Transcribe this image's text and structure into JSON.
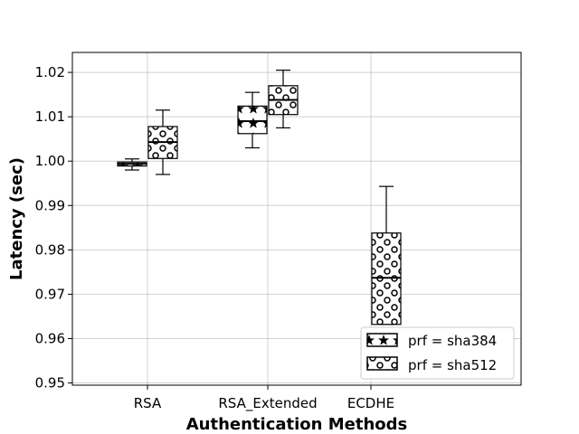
{
  "chart_data": {
    "type": "box",
    "title": "",
    "xlabel": "Authentication Methods",
    "ylabel": "Latency (sec)",
    "categories": [
      "RSA",
      "RSA_Extended",
      "ECDHE"
    ],
    "ylim": [
      0.9495,
      1.0245
    ],
    "yticks": [
      "0.95",
      "0.96",
      "0.97",
      "0.98",
      "0.99",
      "1.00",
      "1.01",
      "1.02"
    ],
    "grid": true,
    "legend_position": "lower-right",
    "series": [
      {
        "name": "prf = sha384",
        "hatch": "stars",
        "boxes": [
          {
            "category": "RSA",
            "whisker_low": 0.998,
            "q1": 0.9989,
            "median": 0.9994,
            "q3": 0.9998,
            "whisker_high": 1.0005
          },
          {
            "category": "RSA_Extended",
            "whisker_low": 1.003,
            "q1": 1.0062,
            "median": 1.009,
            "q3": 1.0124,
            "whisker_high": 1.0155
          }
        ]
      },
      {
        "name": "prf = sha512",
        "hatch": "circles",
        "boxes": [
          {
            "category": "RSA",
            "whisker_low": 0.997,
            "q1": 1.0006,
            "median": 1.0043,
            "q3": 1.0078,
            "whisker_high": 1.0115
          },
          {
            "category": "RSA_Extended",
            "whisker_low": 1.0075,
            "q1": 1.0105,
            "median": 1.0138,
            "q3": 1.017,
            "whisker_high": 1.0205
          },
          {
            "category": "ECDHE",
            "whisker_low": 0.9632,
            "q1": 0.9632,
            "median": 0.9737,
            "q3": 0.9838,
            "whisker_high": 0.9943
          }
        ]
      }
    ]
  }
}
